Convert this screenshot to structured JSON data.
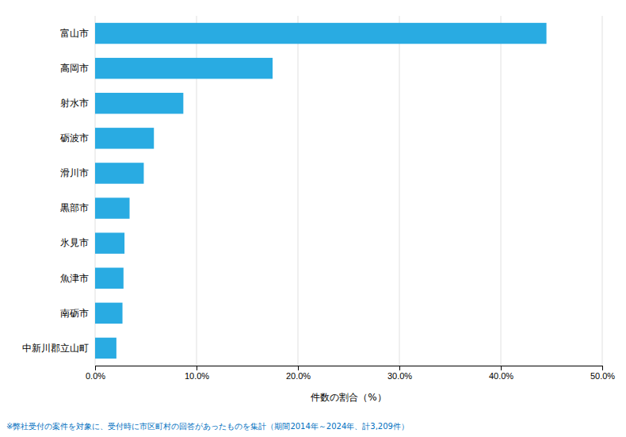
{
  "chart_data": {
    "type": "bar",
    "orientation": "horizontal",
    "categories": [
      "富山市",
      "高岡市",
      "射水市",
      "砺波市",
      "滑川市",
      "黒部市",
      "氷見市",
      "魚津市",
      "南砺市",
      "中新川郡立山町"
    ],
    "values": [
      44.5,
      17.5,
      8.7,
      5.8,
      4.8,
      3.4,
      2.9,
      2.8,
      2.7,
      2.1
    ],
    "color": "#29ABE2",
    "xlabel": "件数の割合（%）",
    "xlim": [
      0,
      50.0
    ],
    "xticks": [
      {
        "value": 0.0,
        "label": "0.0%"
      },
      {
        "value": 10.0,
        "label": "10.0%"
      },
      {
        "value": 20.0,
        "label": "20.0%"
      },
      {
        "value": 30.0,
        "label": "30.0%"
      },
      {
        "value": 40.0,
        "label": "40.0%"
      },
      {
        "value": 50.0,
        "label": "50.0%"
      }
    ],
    "grid": true,
    "annotations": [
      "※弊社受付の案件を対象に、受付時に市区町村の回答があったものを集計（期間2014年～2024年、計3,209件）"
    ]
  }
}
